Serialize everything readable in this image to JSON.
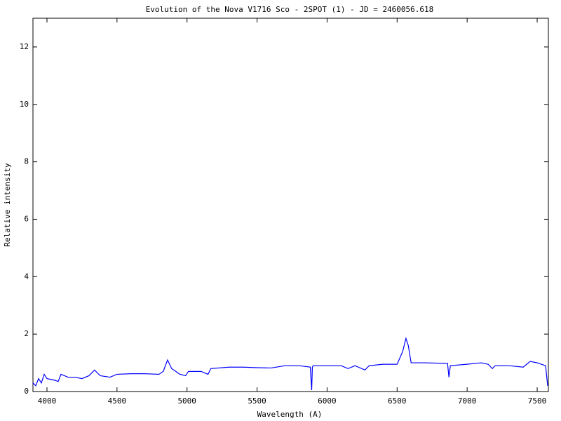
{
  "chart_data": {
    "type": "line",
    "title": "Evolution of the Nova V1716 Sco -  2SPOT (1) - JD = 2460056.618",
    "xlabel": "Wavelength (A)",
    "ylabel": "Relative intensity",
    "x": [
      3900,
      3920,
      3940,
      3960,
      3980,
      4000,
      4050,
      4080,
      4100,
      4150,
      4200,
      4250,
      4300,
      4340,
      4380,
      4450,
      4500,
      4600,
      4700,
      4800,
      4830,
      4861,
      4890,
      4920,
      4950,
      4990,
      5010,
      5100,
      5150,
      5170,
      5300,
      5400,
      5500,
      5600,
      5700,
      5800,
      5880,
      5890,
      5895,
      5900,
      6000,
      6100,
      6150,
      6200,
      6270,
      6300,
      6400,
      6500,
      6540,
      6563,
      6580,
      6600,
      6700,
      6860,
      6870,
      6880,
      7000,
      7100,
      7150,
      7180,
      7200,
      7300,
      7400,
      7450,
      7500,
      7560,
      7575
    ],
    "series": [
      {
        "color": "#0000ff",
        "values": [
          0.3,
          0.2,
          0.45,
          0.3,
          0.6,
          0.45,
          0.4,
          0.35,
          0.6,
          0.5,
          0.5,
          0.45,
          0.55,
          0.75,
          0.55,
          0.5,
          0.6,
          0.62,
          0.62,
          0.6,
          0.7,
          1.1,
          0.8,
          0.7,
          0.6,
          0.55,
          0.7,
          0.7,
          0.6,
          0.8,
          0.85,
          0.85,
          0.83,
          0.82,
          0.9,
          0.9,
          0.85,
          0.05,
          0.85,
          0.9,
          0.9,
          0.9,
          0.8,
          0.9,
          0.75,
          0.9,
          0.95,
          0.95,
          1.4,
          1.85,
          1.6,
          1.0,
          1.0,
          0.98,
          0.5,
          0.9,
          0.95,
          1.0,
          0.95,
          0.8,
          0.9,
          0.9,
          0.85,
          1.05,
          1.0,
          0.9,
          0.2
        ]
      }
    ],
    "xlim": [
      3900,
      7580
    ],
    "ylim": [
      0,
      13
    ],
    "xticks": [
      4000,
      4500,
      5000,
      5500,
      6000,
      6500,
      7000,
      7500
    ],
    "yticks": [
      0,
      2,
      4,
      6,
      8,
      10,
      12
    ]
  }
}
